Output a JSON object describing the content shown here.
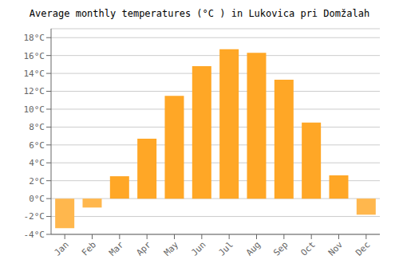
{
  "chart_data": {
    "type": "bar",
    "title": "Average monthly temperatures (°C ) in Lukovica pri Domžalah",
    "categories": [
      "Jan",
      "Feb",
      "Mar",
      "Apr",
      "May",
      "Jun",
      "Jul",
      "Aug",
      "Sep",
      "Oct",
      "Nov",
      "Dec"
    ],
    "values": [
      -3.3,
      -1.0,
      2.5,
      6.7,
      11.5,
      14.8,
      16.7,
      16.3,
      13.3,
      8.5,
      2.6,
      -1.8
    ],
    "colors": [
      "#FFB74D",
      "#FFB74D",
      "#FFA726",
      "#FFA726",
      "#FFA726",
      "#FFA726",
      "#FFA726",
      "#FFA726",
      "#FFA726",
      "#FFA726",
      "#FFA726",
      "#FFB74D"
    ],
    "ylim": [
      -4,
      19
    ],
    "yticks": [
      {
        "value": -4,
        "label": "-4°C"
      },
      {
        "value": -2,
        "label": "-2°C"
      },
      {
        "value": 0,
        "label": "0°C"
      },
      {
        "value": 2,
        "label": "2°C"
      },
      {
        "value": 4,
        "label": "4°C"
      },
      {
        "value": 6,
        "label": "6°C"
      },
      {
        "value": 8,
        "label": "8°C"
      },
      {
        "value": 10,
        "label": "10°C"
      },
      {
        "value": 12,
        "label": "12°C"
      },
      {
        "value": 14,
        "label": "14°C"
      },
      {
        "value": 16,
        "label": "16°C"
      },
      {
        "value": 18,
        "label": "18°C"
      }
    ],
    "grid": true
  }
}
